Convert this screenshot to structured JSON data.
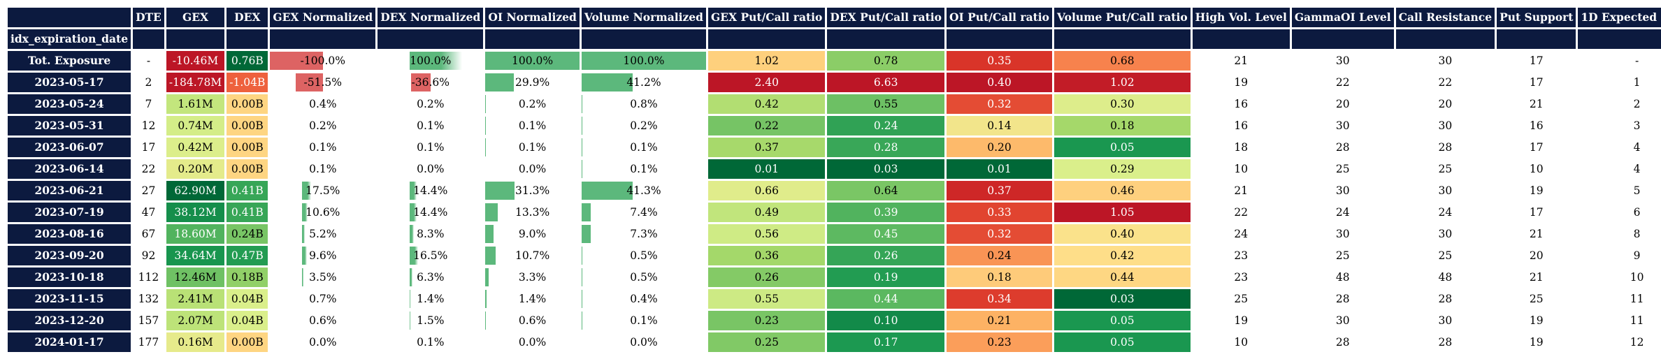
{
  "columns": [
    "DTE",
    "GEX",
    "DEX",
    "GEX Normalized",
    "DEX Normalized",
    "OI Normalized",
    "Volume Normalized",
    "GEX Put/Call ratio",
    "DEX Put/Call ratio",
    "OI Put/Call ratio",
    "Volume Put/Call ratio",
    "High Vol. Level",
    "GammaOI Level",
    "Call Resistance",
    "Put Support",
    "1D Expected Move"
  ],
  "index_name": "idx_expiration_date",
  "rows": [
    {
      "date": "Tot. Exposure",
      "dte": "-",
      "gex": "-10.46M",
      "dex": "0.76B",
      "gexn": "-100.0%",
      "dexn": "100.0%",
      "oin": "100.0%",
      "voln": "100.0%",
      "gpc": "1.02",
      "dpc": "0.78",
      "opc": "0.35",
      "vpc": "0.68",
      "hv": "21",
      "goi": "30",
      "cr": "30",
      "ps": "17",
      "em": "-"
    },
    {
      "date": "2023-05-17",
      "dte": "2",
      "gex": "-184.78M",
      "dex": "-1.04B",
      "gexn": "-51.5%",
      "dexn": "-36.6%",
      "oin": "29.9%",
      "voln": "41.2%",
      "gpc": "2.40",
      "dpc": "6.63",
      "opc": "0.40",
      "vpc": "1.02",
      "hv": "19",
      "goi": "22",
      "cr": "22",
      "ps": "17",
      "em": "1"
    },
    {
      "date": "2023-05-24",
      "dte": "7",
      "gex": "1.61M",
      "dex": "0.00B",
      "gexn": "0.4%",
      "dexn": "0.2%",
      "oin": "0.2%",
      "voln": "0.8%",
      "gpc": "0.42",
      "dpc": "0.55",
      "opc": "0.32",
      "vpc": "0.30",
      "hv": "16",
      "goi": "20",
      "cr": "20",
      "ps": "21",
      "em": "2"
    },
    {
      "date": "2023-05-31",
      "dte": "12",
      "gex": "0.74M",
      "dex": "0.00B",
      "gexn": "0.2%",
      "dexn": "0.1%",
      "oin": "0.1%",
      "voln": "0.2%",
      "gpc": "0.22",
      "dpc": "0.24",
      "opc": "0.14",
      "vpc": "0.18",
      "hv": "16",
      "goi": "30",
      "cr": "30",
      "ps": "16",
      "em": "3"
    },
    {
      "date": "2023-06-07",
      "dte": "17",
      "gex": "0.42M",
      "dex": "0.00B",
      "gexn": "0.1%",
      "dexn": "0.1%",
      "oin": "0.1%",
      "voln": "0.1%",
      "gpc": "0.37",
      "dpc": "0.28",
      "opc": "0.20",
      "vpc": "0.05",
      "hv": "18",
      "goi": "28",
      "cr": "28",
      "ps": "17",
      "em": "4"
    },
    {
      "date": "2023-06-14",
      "dte": "22",
      "gex": "0.20M",
      "dex": "0.00B",
      "gexn": "0.1%",
      "dexn": "0.0%",
      "oin": "0.0%",
      "voln": "0.1%",
      "gpc": "0.01",
      "dpc": "0.03",
      "opc": "0.01",
      "vpc": "0.29",
      "hv": "10",
      "goi": "25",
      "cr": "25",
      "ps": "10",
      "em": "4"
    },
    {
      "date": "2023-06-21",
      "dte": "27",
      "gex": "62.90M",
      "dex": "0.41B",
      "gexn": "17.5%",
      "dexn": "14.4%",
      "oin": "31.3%",
      "voln": "41.3%",
      "gpc": "0.66",
      "dpc": "0.64",
      "opc": "0.37",
      "vpc": "0.46",
      "hv": "21",
      "goi": "30",
      "cr": "30",
      "ps": "19",
      "em": "5"
    },
    {
      "date": "2023-07-19",
      "dte": "47",
      "gex": "38.12M",
      "dex": "0.41B",
      "gexn": "10.6%",
      "dexn": "14.4%",
      "oin": "13.3%",
      "voln": "7.4%",
      "gpc": "0.49",
      "dpc": "0.39",
      "opc": "0.33",
      "vpc": "1.05",
      "hv": "22",
      "goi": "24",
      "cr": "24",
      "ps": "17",
      "em": "6"
    },
    {
      "date": "2023-08-16",
      "dte": "67",
      "gex": "18.60M",
      "dex": "0.24B",
      "gexn": "5.2%",
      "dexn": "8.3%",
      "oin": "9.0%",
      "voln": "7.3%",
      "gpc": "0.56",
      "dpc": "0.45",
      "opc": "0.32",
      "vpc": "0.40",
      "hv": "24",
      "goi": "30",
      "cr": "30",
      "ps": "21",
      "em": "8"
    },
    {
      "date": "2023-09-20",
      "dte": "92",
      "gex": "34.64M",
      "dex": "0.47B",
      "gexn": "9.6%",
      "dexn": "16.5%",
      "oin": "10.7%",
      "voln": "0.5%",
      "gpc": "0.36",
      "dpc": "0.26",
      "opc": "0.24",
      "vpc": "0.42",
      "hv": "23",
      "goi": "25",
      "cr": "25",
      "ps": "20",
      "em": "9"
    },
    {
      "date": "2023-10-18",
      "dte": "112",
      "gex": "12.46M",
      "dex": "0.18B",
      "gexn": "3.5%",
      "dexn": "6.3%",
      "oin": "3.3%",
      "voln": "0.5%",
      "gpc": "0.26",
      "dpc": "0.19",
      "opc": "0.18",
      "vpc": "0.44",
      "hv": "23",
      "goi": "48",
      "cr": "48",
      "ps": "21",
      "em": "10"
    },
    {
      "date": "2023-11-15",
      "dte": "132",
      "gex": "2.41M",
      "dex": "0.04B",
      "gexn": "0.7%",
      "dexn": "1.4%",
      "oin": "1.4%",
      "voln": "0.4%",
      "gpc": "0.55",
      "dpc": "0.44",
      "opc": "0.34",
      "vpc": "0.03",
      "hv": "25",
      "goi": "28",
      "cr": "28",
      "ps": "25",
      "em": "11"
    },
    {
      "date": "2023-12-20",
      "dte": "157",
      "gex": "2.07M",
      "dex": "0.04B",
      "gexn": "0.6%",
      "dexn": "1.5%",
      "oin": "0.6%",
      "voln": "0.1%",
      "gpc": "0.23",
      "dpc": "0.10",
      "opc": "0.21",
      "vpc": "0.05",
      "hv": "19",
      "goi": "30",
      "cr": "30",
      "ps": "19",
      "em": "11"
    },
    {
      "date": "2024-01-17",
      "dte": "177",
      "gex": "0.16M",
      "dex": "0.00B",
      "gexn": "0.0%",
      "dexn": "0.1%",
      "oin": "0.0%",
      "voln": "0.0%",
      "gpc": "0.25",
      "dpc": "0.17",
      "opc": "0.23",
      "vpc": "0.05",
      "hv": "10",
      "goi": "28",
      "cr": "28",
      "ps": "19",
      "em": "12"
    }
  ],
  "colors": {
    "header_bg": "#0c1a3f",
    "positive_bar": "#5cb87c",
    "negative_bar": "#dd6363"
  }
}
